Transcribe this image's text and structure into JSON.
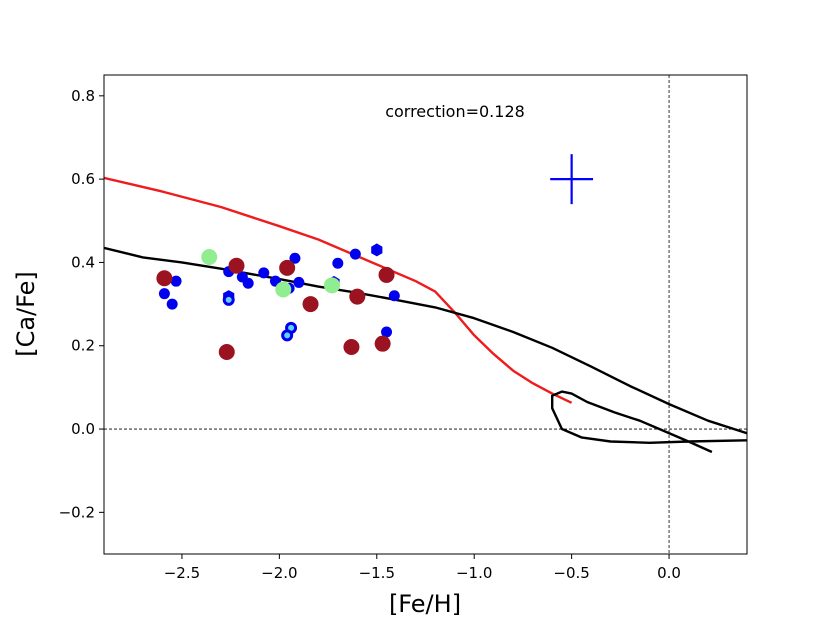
{
  "chart_data": {
    "type": "scatter",
    "xlabel": "[Fe/H]",
    "ylabel": "[Ca/Fe]",
    "xlim": [
      -2.9,
      0.4
    ],
    "ylim": [
      -0.3,
      0.85
    ],
    "xticks": [
      -2.5,
      -2.0,
      -1.5,
      -1.0,
      -0.5,
      0.0
    ],
    "xtick_labels": [
      "−2.5",
      "−2.0",
      "−1.5",
      "−1.0",
      "−0.5",
      "0.0"
    ],
    "yticks": [
      -0.2,
      0.0,
      0.2,
      0.4,
      0.6,
      0.8
    ],
    "ytick_labels": [
      "−0.2",
      "0.0",
      "0.2",
      "0.4",
      "0.6",
      "0.8"
    ],
    "annotation": "correction=0.128",
    "reference_lines": {
      "x": 0.0,
      "y": 0.0
    },
    "error_bar": {
      "x": -0.5,
      "y": 0.6,
      "xerr": 0.11,
      "yerr": 0.06,
      "color": "#0000ff"
    },
    "curves": [
      {
        "name": "red model",
        "color": "#ee1c1c",
        "points": [
          [
            -2.9,
            0.603
          ],
          [
            -2.6,
            0.57
          ],
          [
            -2.3,
            0.533
          ],
          [
            -2.0,
            0.487
          ],
          [
            -1.8,
            0.455
          ],
          [
            -1.5,
            0.395
          ],
          [
            -1.3,
            0.355
          ],
          [
            -1.2,
            0.33
          ],
          [
            -1.1,
            0.28
          ],
          [
            -1.0,
            0.225
          ],
          [
            -0.9,
            0.18
          ],
          [
            -0.8,
            0.14
          ],
          [
            -0.7,
            0.11
          ],
          [
            -0.6,
            0.085
          ],
          [
            -0.5,
            0.063
          ]
        ]
      },
      {
        "name": "black model",
        "color": "#000000",
        "points": [
          [
            -2.9,
            0.435
          ],
          [
            -2.7,
            0.412
          ],
          [
            -2.5,
            0.4
          ],
          [
            -2.3,
            0.385
          ],
          [
            -2.0,
            0.36
          ],
          [
            -1.8,
            0.342
          ],
          [
            -1.6,
            0.327
          ],
          [
            -1.4,
            0.31
          ],
          [
            -1.2,
            0.292
          ],
          [
            -1.0,
            0.266
          ],
          [
            -0.8,
            0.233
          ],
          [
            -0.6,
            0.195
          ],
          [
            -0.4,
            0.15
          ],
          [
            -0.2,
            0.103
          ],
          [
            0.0,
            0.06
          ],
          [
            0.2,
            0.02
          ],
          [
            0.4,
            -0.01
          ]
        ]
      },
      {
        "name": "black loop",
        "color": "#000000",
        "points": [
          [
            0.22,
            -0.055
          ],
          [
            0.1,
            -0.03
          ],
          [
            -0.05,
            0.0
          ],
          [
            -0.15,
            0.02
          ],
          [
            -0.28,
            0.04
          ],
          [
            -0.42,
            0.065
          ],
          [
            -0.5,
            0.085
          ],
          [
            -0.55,
            0.09
          ],
          [
            -0.6,
            0.08
          ],
          [
            -0.6,
            0.05
          ],
          [
            -0.55,
            0.0
          ],
          [
            -0.45,
            -0.02
          ],
          [
            -0.3,
            -0.03
          ],
          [
            -0.1,
            -0.033
          ],
          [
            0.1,
            -0.03
          ],
          [
            0.4,
            -0.027
          ]
        ]
      }
    ],
    "series": [
      {
        "name": "blue circles",
        "marker": "circle",
        "color": "#0000ee",
        "points": [
          [
            -2.59,
            0.325
          ],
          [
            -2.55,
            0.3
          ],
          [
            -2.53,
            0.355
          ],
          [
            -2.26,
            0.378
          ],
          [
            -2.19,
            0.365
          ],
          [
            -2.16,
            0.35
          ],
          [
            -2.08,
            0.375
          ],
          [
            -2.02,
            0.355
          ],
          [
            -1.95,
            0.338
          ],
          [
            -1.92,
            0.41
          ],
          [
            -1.9,
            0.352
          ],
          [
            -1.7,
            0.398
          ],
          [
            -1.61,
            0.42
          ],
          [
            -1.45,
            0.233
          ],
          [
            -1.41,
            0.32
          ]
        ]
      },
      {
        "name": "blue hexagons",
        "marker": "hexagon",
        "color": "#0000ee",
        "points": [
          [
            -1.5,
            0.43
          ],
          [
            -1.72,
            0.352
          ],
          [
            -2.26,
            0.318
          ]
        ]
      },
      {
        "name": "blue open circles",
        "marker": "open-circle",
        "color": "#0000ee",
        "points": [
          [
            -2.26,
            0.31
          ],
          [
            -1.94,
            0.243
          ],
          [
            -1.96,
            0.225
          ]
        ]
      },
      {
        "name": "dark red circles",
        "marker": "circle",
        "color": "#9b1320",
        "points": [
          [
            -2.59,
            0.362
          ],
          [
            -2.27,
            0.185
          ],
          [
            -2.22,
            0.392
          ],
          [
            -1.96,
            0.387
          ],
          [
            -1.84,
            0.3
          ],
          [
            -1.63,
            0.197
          ],
          [
            -1.6,
            0.318
          ],
          [
            -1.47,
            0.205
          ],
          [
            -1.45,
            0.37
          ]
        ]
      },
      {
        "name": "light green circles",
        "marker": "circle",
        "color": "#90ee90",
        "points": [
          [
            -2.36,
            0.413
          ],
          [
            -1.98,
            0.335
          ],
          [
            -1.73,
            0.345
          ]
        ]
      }
    ]
  }
}
